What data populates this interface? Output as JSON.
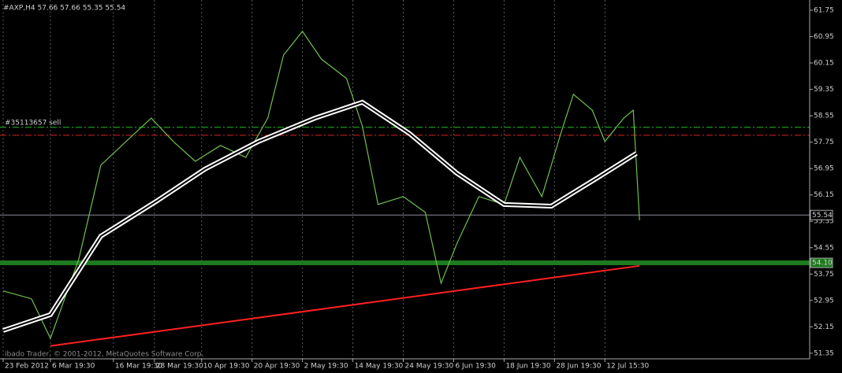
{
  "chart_data": {
    "type": "line",
    "title": "#AXP,H4  57.66 57.66 55.35 55.54",
    "watermark": "ibado Trader, © 2001-2012, MetaQuotes Software Corp.",
    "xlim": [
      0,
      257
    ],
    "ylim": [
      51.18,
      62.06
    ],
    "xticks": [
      {
        "value": 1,
        "label": "23 Feb 2012"
      },
      {
        "value": 16,
        "label": "6 Mar 19:30"
      },
      {
        "value": 36,
        "label": "16 Mar 19:30"
      },
      {
        "value": 49,
        "label": "28 Mar 19:30"
      },
      {
        "value": 64,
        "label": "10 Apr 19:30"
      },
      {
        "value": 80,
        "label": "20 Apr 19:30"
      },
      {
        "value": 96,
        "label": "2 May 19:30"
      },
      {
        "value": 112,
        "label": "14 May 19:30"
      },
      {
        "value": 128,
        "label": "24 May 19:30"
      },
      {
        "value": 144,
        "label": "6 Jun 19:30"
      },
      {
        "value": 160,
        "label": "18 Jun 19:30"
      },
      {
        "value": 176,
        "label": "28 Jun 19:30"
      },
      {
        "value": 192,
        "label": "12 Jul 15:30"
      }
    ],
    "yticks": [
      61.75,
      60.95,
      60.15,
      59.35,
      58.55,
      57.75,
      56.95,
      56.15,
      55.35,
      54.55,
      53.75,
      52.95,
      52.15,
      51.35
    ],
    "grid": true,
    "series": [
      {
        "color": "#6fbf4f",
        "style": "price",
        "x": [
          1,
          10,
          16,
          25,
          32,
          40,
          48,
          55,
          62,
          70,
          78,
          85,
          90,
          96,
          102,
          110,
          115,
          120,
          128,
          135,
          140,
          145,
          152,
          160,
          165,
          172,
          178,
          182,
          188,
          192,
          198,
          201,
          203
        ],
        "values": [
          53.24,
          53.0,
          51.8,
          54.2,
          57.05,
          57.77,
          58.48,
          57.77,
          57.17,
          57.65,
          57.29,
          58.48,
          60.39,
          61.11,
          60.27,
          59.68,
          58.24,
          55.86,
          56.1,
          55.62,
          53.47,
          54.67,
          56.1,
          55.86,
          57.29,
          56.1,
          58.01,
          59.2,
          58.72,
          57.77,
          58.48,
          58.72,
          55.38
        ]
      },
      {
        "color": "#ffffff",
        "style": "band",
        "x": [
          1,
          16,
          32,
          50,
          65,
          82,
          100,
          115,
          130,
          145,
          160,
          175,
          190,
          202
        ],
        "values": [
          52.04,
          52.52,
          54.9,
          55.98,
          56.93,
          57.77,
          58.48,
          58.96,
          58.01,
          56.81,
          55.86,
          55.81,
          56.69,
          57.41
        ]
      },
      {
        "color": "#ff2020",
        "style": "trend",
        "x": [
          16,
          203
        ],
        "values": [
          51.57,
          54.0
        ]
      }
    ],
    "levels": [
      {
        "value": 58.2,
        "color": "#20c020",
        "dash": true,
        "label": "#35113657 sell"
      },
      {
        "value": 57.96,
        "color": "#e02020",
        "dash": true
      },
      {
        "value": 55.54,
        "color": "#8a8a9a",
        "dash": false,
        "label": "55.54"
      },
      {
        "value": 54.09,
        "color": "#1e7a1e",
        "dash": false,
        "label": "54.10"
      }
    ]
  }
}
